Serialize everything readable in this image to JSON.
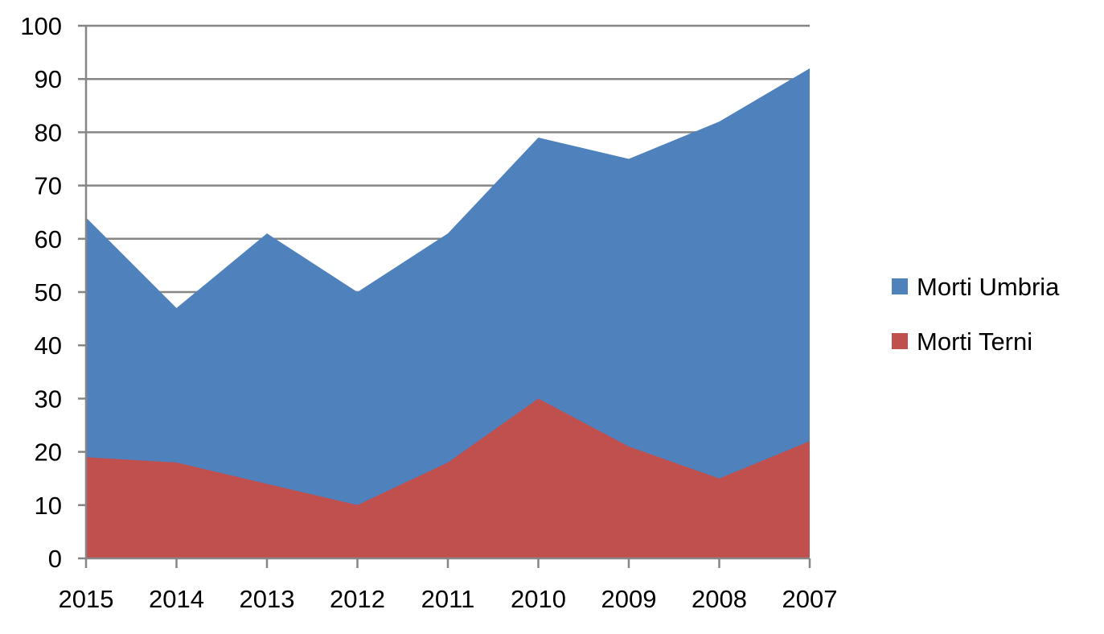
{
  "chart_data": {
    "type": "area",
    "stacked": false,
    "categories": [
      "2015",
      "2014",
      "2013",
      "2012",
      "2011",
      "2010",
      "2009",
      "2008",
      "2007"
    ],
    "series": [
      {
        "name": "Morti Umbria",
        "color": "#4F81BD",
        "values": [
          64,
          47,
          61,
          50,
          61,
          79,
          75,
          82,
          92
        ]
      },
      {
        "name": "Morti Terni",
        "color": "#C0504D",
        "values": [
          19,
          18,
          14,
          10,
          18,
          30,
          21,
          15,
          22
        ]
      }
    ],
    "title": "",
    "xlabel": "",
    "ylabel": "",
    "ylim": [
      0,
      100
    ],
    "yticks": [
      "0",
      "10",
      "20",
      "30",
      "40",
      "50",
      "60",
      "70",
      "80",
      "90",
      "100"
    ],
    "grid": "horizontal",
    "legend_position": "right"
  }
}
